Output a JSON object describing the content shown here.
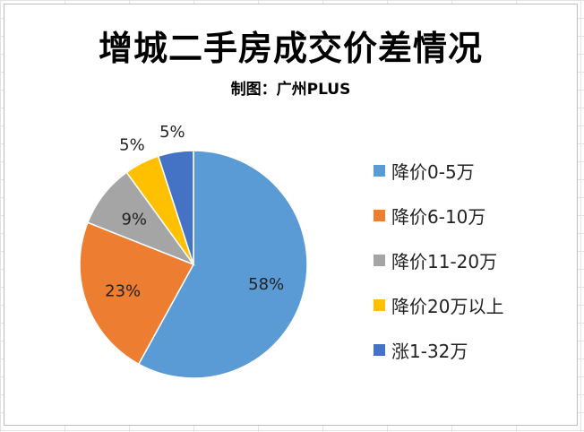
{
  "chart_data": {
    "type": "pie",
    "title": "增城二手房成交价差情况",
    "subtitle": "制图：广州PLUS",
    "categories": [
      "降价0-5万",
      "降价6-10万",
      "降价11-20万",
      "降价20万以上",
      "涨1-32万"
    ],
    "values": [
      58,
      23,
      9,
      5,
      5
    ],
    "data_labels": [
      "58%",
      "23%",
      "9%",
      "5%",
      "5%"
    ],
    "colors": [
      "#5b9bd5",
      "#ed7d31",
      "#a5a5a5",
      "#ffc000",
      "#4472c4"
    ],
    "legend_position": "right"
  }
}
